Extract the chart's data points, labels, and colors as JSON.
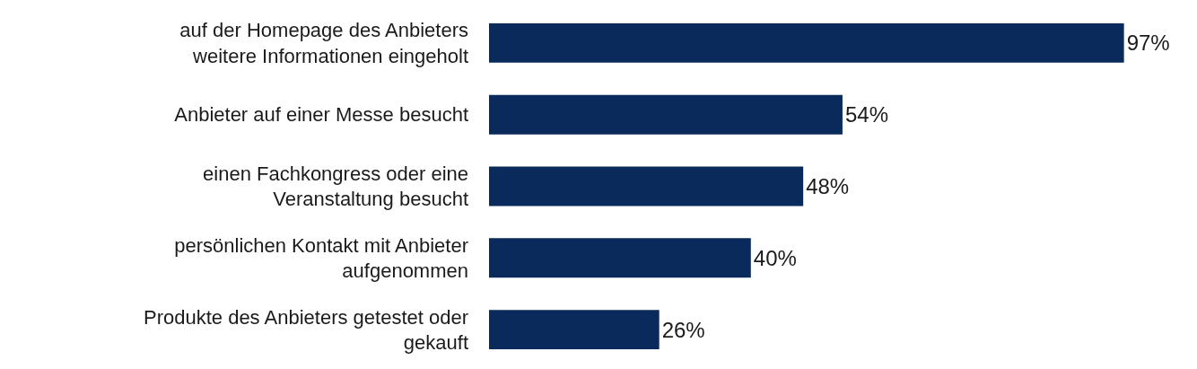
{
  "chart_data": {
    "type": "bar",
    "orientation": "horizontal",
    "categories": [
      "auf der Homepage des Anbieters\nweitere Informationen eingeholt",
      "Anbieter auf einer Messe besucht",
      "einen Fachkongress oder eine\nVeranstaltung besucht",
      "persönlichen Kontakt mit Anbieter\naufgenommen",
      "Produkte des Anbieters getestet oder\ngekauft"
    ],
    "values": [
      97,
      54,
      48,
      40,
      26
    ],
    "value_labels": [
      "97%",
      "54%",
      "48%",
      "40%",
      "26%"
    ],
    "color": "#0b2a5c"
  }
}
